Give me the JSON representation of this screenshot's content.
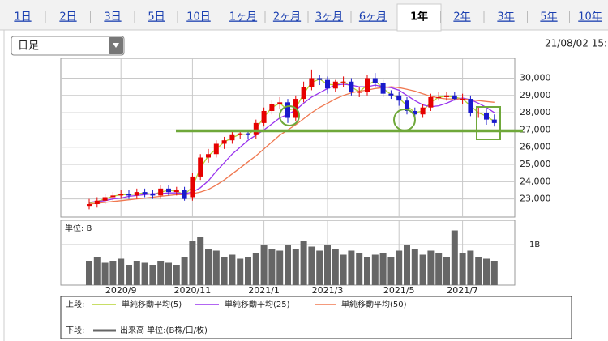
{
  "tabs": [
    "1日",
    "2日",
    "3日",
    "5日",
    "10日",
    "1ヶ月",
    "2ヶ月",
    "3ヶ月",
    "6ヶ月",
    "1年",
    "2年",
    "3年",
    "5年",
    "10年"
  ],
  "selected_tab": 9,
  "dropdown": "日足",
  "timestamp": "21/08/02 15:",
  "legend": {
    "upper_label": "上段:",
    "lower_label": "下段:"
  },
  "chart_data": {
    "type": "candlestick",
    "categories": [
      null,
      null,
      null,
      null,
      "2020/9",
      null,
      null,
      null,
      null,
      null,
      null,
      null,
      null,
      "2020/11",
      null,
      null,
      null,
      null,
      null,
      null,
      null,
      null,
      "2021/1",
      null,
      null,
      null,
      null,
      null,
      null,
      null,
      "2021/3",
      null,
      null,
      null,
      null,
      null,
      null,
      null,
      null,
      "2021/5",
      null,
      null,
      null,
      null,
      null,
      null,
      null,
      "2021/7",
      null,
      null,
      null,
      null
    ],
    "open": [
      22600,
      22700,
      22900,
      23100,
      23200,
      23300,
      23200,
      23400,
      23300,
      23200,
      23600,
      23400,
      23500,
      23100,
      24300,
      25400,
      25600,
      26200,
      26400,
      26700,
      26800,
      26700,
      27400,
      28100,
      28500,
      28600,
      27700,
      28800,
      29500,
      30000,
      29900,
      29400,
      29800,
      29800,
      29200,
      29200,
      30000,
      29700,
      29100,
      29000,
      28700,
      28100,
      27900,
      28300,
      28900,
      28900,
      29000,
      28800,
      28800,
      28000,
      28000,
      27600
    ],
    "high": [
      23000,
      23100,
      23300,
      23400,
      23500,
      23500,
      23600,
      23600,
      23500,
      23800,
      23800,
      23700,
      23700,
      24500,
      25600,
      25900,
      26400,
      26600,
      26900,
      27000,
      27000,
      27600,
      28300,
      28700,
      28900,
      28800,
      29000,
      29800,
      30500,
      30200,
      30100,
      29900,
      30100,
      30000,
      29500,
      30200,
      30300,
      29900,
      29300,
      29200,
      28900,
      28300,
      28500,
      29100,
      29200,
      29200,
      29200,
      29100,
      29000,
      28300,
      28200,
      27900
    ],
    "low": [
      22400,
      22500,
      22700,
      22900,
      23000,
      23000,
      23000,
      23100,
      23000,
      23000,
      23200,
      23200,
      22900,
      22900,
      24100,
      25100,
      25400,
      25900,
      26200,
      26500,
      26500,
      26500,
      27200,
      27900,
      28200,
      27400,
      27500,
      28600,
      29300,
      29600,
      29100,
      29200,
      29500,
      29000,
      28900,
      29000,
      29500,
      28900,
      28800,
      28400,
      27900,
      27400,
      27700,
      28100,
      28700,
      28700,
      28700,
      28500,
      27800,
      27700,
      27300,
      27200
    ],
    "close": [
      22700,
      22900,
      23100,
      23200,
      23300,
      23200,
      23400,
      23300,
      23200,
      23600,
      23400,
      23500,
      23000,
      24300,
      25400,
      25600,
      26200,
      26400,
      26700,
      26800,
      26700,
      27400,
      28100,
      28500,
      28600,
      27700,
      28800,
      29500,
      30000,
      29900,
      29400,
      29800,
      29800,
      29200,
      29200,
      30000,
      29700,
      29100,
      29000,
      28700,
      28100,
      27900,
      28300,
      28900,
      28900,
      29000,
      28800,
      28800,
      28000,
      28000,
      27600,
      27400
    ],
    "up_color": "#e60000",
    "down_color": "#1a1acc",
    "series": [
      {
        "name": "単純移動平均(5)",
        "color": "#b5d334",
        "values": [
          22750,
          22850,
          23000,
          23150,
          23250,
          23250,
          23300,
          23350,
          23250,
          23400,
          23500,
          23450,
          23250,
          23700,
          24800,
          25500,
          25900,
          26300,
          26550,
          26750,
          26750,
          27050,
          27750,
          28300,
          28550,
          28150,
          28250,
          29100,
          29750,
          29950,
          29650,
          29600,
          29800,
          29500,
          29200,
          29600,
          29850,
          29400,
          29050,
          28850,
          28400,
          28000,
          28100,
          28600,
          28900,
          28950,
          28900,
          28800,
          28400,
          28000,
          27800,
          27500
        ]
      },
      {
        "name": "単純移動平均(25)",
        "color": "#9933ee",
        "values": [
          22800,
          22850,
          22900,
          23000,
          23050,
          23150,
          23200,
          23250,
          23300,
          23300,
          23350,
          23350,
          23300,
          23400,
          23650,
          24050,
          24600,
          25100,
          25600,
          26000,
          26400,
          26700,
          27000,
          27350,
          27700,
          27900,
          28150,
          28550,
          28900,
          29150,
          29400,
          29600,
          29650,
          29600,
          29500,
          29500,
          29600,
          29500,
          29450,
          29300,
          29000,
          28700,
          28450,
          28350,
          28400,
          28550,
          28750,
          28850,
          28750,
          28550,
          28300,
          28000
        ]
      },
      {
        "name": "単純移動平均(50)",
        "color": "#f07850",
        "values": [
          22700,
          22750,
          22800,
          22850,
          22900,
          22950,
          23000,
          23050,
          23100,
          23150,
          23200,
          23250,
          23250,
          23300,
          23400,
          23550,
          23800,
          24100,
          24450,
          24800,
          25150,
          25500,
          25900,
          26300,
          26700,
          27000,
          27300,
          27650,
          28000,
          28300,
          28550,
          28800,
          29000,
          29150,
          29250,
          29300,
          29400,
          29450,
          29500,
          29450,
          29350,
          29250,
          29100,
          28950,
          28850,
          28800,
          28800,
          28800,
          28750,
          28700,
          28650,
          28600
        ]
      }
    ],
    "ylim": [
      21950,
      31150
    ],
    "yticks": [
      {
        "value": 23000,
        "label": "23,000"
      },
      {
        "value": 24000,
        "label": "24,000"
      },
      {
        "value": 25000,
        "label": "25,000"
      },
      {
        "value": 26000,
        "label": "26,000"
      },
      {
        "value": 27000,
        "label": "27,000"
      },
      {
        "value": 28000,
        "label": "28,000"
      },
      {
        "value": 29000,
        "label": "29,000"
      },
      {
        "value": 30000,
        "label": "30,000"
      }
    ],
    "grid": true,
    "support_line": {
      "value": 26950,
      "color": "#6fa83a"
    },
    "volume": {
      "name": "出来高 単位:(B株/口/枚)",
      "unit_label": "単位: B",
      "color": "#666666",
      "values": [
        0.6,
        0.7,
        0.55,
        0.6,
        0.65,
        0.5,
        0.6,
        0.55,
        0.5,
        0.6,
        0.55,
        0.5,
        0.7,
        1.1,
        1.2,
        0.9,
        0.85,
        0.7,
        0.75,
        0.65,
        0.7,
        0.8,
        1.0,
        0.9,
        0.85,
        1.0,
        0.9,
        1.1,
        0.95,
        0.85,
        1.0,
        0.9,
        0.75,
        0.85,
        0.8,
        0.7,
        0.75,
        0.8,
        0.7,
        0.85,
        1.0,
        0.9,
        0.75,
        0.85,
        0.8,
        0.7,
        1.35,
        0.8,
        0.85,
        0.7,
        0.65,
        0.6
      ],
      "ylim": [
        0,
        1.6
      ],
      "yticks": [
        {
          "value": 1,
          "label": "1B"
        }
      ]
    }
  }
}
